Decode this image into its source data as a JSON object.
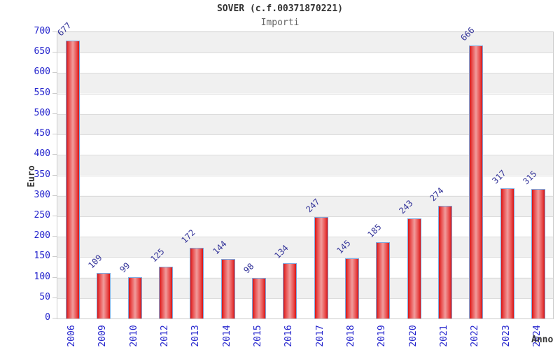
{
  "header": {
    "title": "SOVER (c.f.00371870221)",
    "subtitle": "Importi"
  },
  "chart_data": {
    "type": "bar",
    "title": "SOVER (c.f.00371870221)",
    "subtitle": "Importi",
    "xlabel": "Anno",
    "ylabel": "Euro",
    "categories": [
      "2006",
      "2009",
      "2010",
      "2012",
      "2013",
      "2014",
      "2015",
      "2016",
      "2017",
      "2018",
      "2019",
      "2020",
      "2021",
      "2022",
      "2023",
      "2024"
    ],
    "values": [
      677,
      109,
      99,
      125,
      172,
      144,
      98,
      134,
      247,
      145,
      185,
      243,
      274,
      666,
      317,
      315
    ],
    "ylim": [
      0,
      700
    ],
    "ytick_step": 50,
    "legend": "none",
    "grid": "horizontal-bands",
    "colors": {
      "bar_edge": "#d81414",
      "bar_center": "#f19c9c",
      "bar_border": "#7da7dd",
      "axis_tick_label": "#2424cd",
      "value_label": "#333399",
      "band_gray": "#f0f0f0",
      "band_white": "#ffffff",
      "gridline": "#dcdcdc",
      "plot_border": "#cccccc",
      "title": "#333333",
      "subtitle": "#666666"
    }
  }
}
